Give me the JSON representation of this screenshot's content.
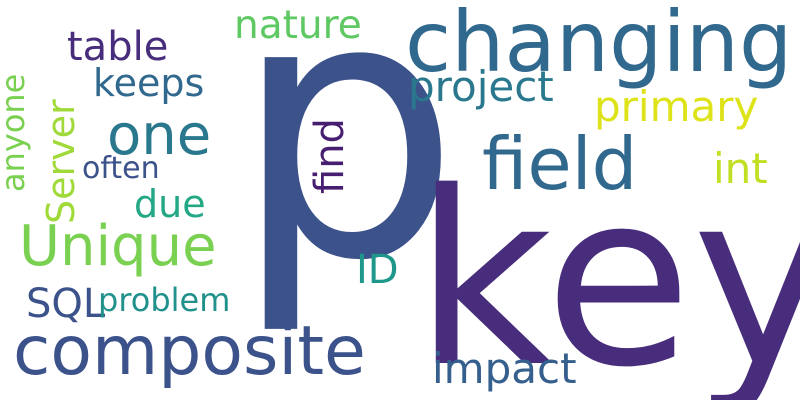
{
  "words": [
    {
      "text": "p",
      "color": "#3b528b"
    },
    {
      "text": "key",
      "color": "#472d7b"
    },
    {
      "text": "changing",
      "color": "#31688e"
    },
    {
      "text": "field",
      "color": "#31688e"
    },
    {
      "text": "composite",
      "color": "#3b528b"
    },
    {
      "text": "Unique",
      "color": "#7ad151"
    },
    {
      "text": "one",
      "color": "#2a788e"
    },
    {
      "text": "nature",
      "color": "#5ec962"
    },
    {
      "text": "table",
      "color": "#472d7b"
    },
    {
      "text": "keeps",
      "color": "#31688e"
    },
    {
      "text": "project",
      "color": "#2a788e"
    },
    {
      "text": "primary",
      "color": "#dde318"
    },
    {
      "text": "int",
      "color": "#c2df23"
    },
    {
      "text": "find",
      "color": "#481f70"
    },
    {
      "text": "often",
      "color": "#3b528b"
    },
    {
      "text": "due",
      "color": "#22a884"
    },
    {
      "text": "Server",
      "color": "#a0da39"
    },
    {
      "text": "anyone",
      "color": "#7ad151"
    },
    {
      "text": "ID",
      "color": "#1f988b"
    },
    {
      "text": "SQL",
      "color": "#3b528b"
    },
    {
      "text": "problem",
      "color": "#21918c"
    },
    {
      "text": "impact",
      "color": "#355f8d"
    }
  ]
}
